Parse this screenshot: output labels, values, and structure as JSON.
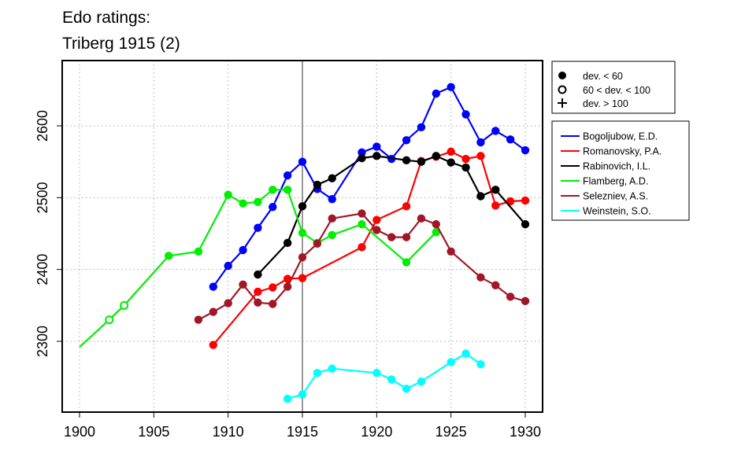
{
  "chart_data": {
    "type": "line",
    "title": "Edo ratings:",
    "subtitle": "Triberg 1915 (2)",
    "xlabel": "",
    "ylabel": "",
    "xlim": [
      1900,
      1930
    ],
    "ylim": [
      2200,
      2690
    ],
    "x_ticks": [
      "1900",
      "1905",
      "1910",
      "1915",
      "1920",
      "1925",
      "1930"
    ],
    "y_ticks": [
      "2300",
      "2400",
      "2500",
      "2600"
    ],
    "grid": true,
    "event_year": 1915,
    "marker_legend": [
      {
        "symbol": "filled-circle",
        "label": "dev. < 60"
      },
      {
        "symbol": "open-circle",
        "label": "60 < dev. < 100"
      },
      {
        "symbol": "plus",
        "label": "dev. > 100"
      }
    ],
    "series": [
      {
        "name": "Bogoljubow, E.D.",
        "color": "#0000ff",
        "points": [
          [
            1909,
            2376
          ],
          [
            1910,
            2405
          ],
          [
            1911,
            2427
          ],
          [
            1912,
            2458
          ],
          [
            1913,
            2487
          ],
          [
            1914,
            2531
          ],
          [
            1915,
            2550
          ],
          [
            1916,
            2512
          ],
          [
            1917,
            2498
          ],
          [
            1919,
            2563
          ],
          [
            1920,
            2571
          ],
          [
            1921,
            2554
          ],
          [
            1922,
            2580
          ],
          [
            1923,
            2598
          ],
          [
            1924,
            2645
          ],
          [
            1925,
            2654
          ],
          [
            1926,
            2616
          ],
          [
            1927,
            2577
          ],
          [
            1928,
            2593
          ],
          [
            1929,
            2581
          ],
          [
            1930,
            2566
          ]
        ],
        "markers": [
          "f",
          "f",
          "f",
          "f",
          "f",
          "f",
          "f",
          "f",
          "f",
          "f",
          "f",
          "f",
          "f",
          "f",
          "f",
          "f",
          "f",
          "f",
          "f",
          "f",
          "f"
        ]
      },
      {
        "name": "Romanovsky, P.A.",
        "color": "#ff0000",
        "points": [
          [
            1909,
            2295
          ],
          [
            1912,
            2369
          ],
          [
            1913,
            2375
          ],
          [
            1914,
            2387
          ],
          [
            1915,
            2388
          ],
          [
            1919,
            2431
          ],
          [
            1920,
            2469
          ],
          [
            1922,
            2488
          ],
          [
            1923,
            2551
          ],
          [
            1924,
            2557
          ],
          [
            1925,
            2564
          ],
          [
            1926,
            2554
          ],
          [
            1927,
            2558
          ],
          [
            1928,
            2489
          ],
          [
            1929,
            2495
          ],
          [
            1930,
            2496
          ]
        ],
        "markers": [
          "f",
          "f",
          "f",
          "f",
          "f",
          "f",
          "f",
          "f",
          "f",
          "f",
          "f",
          "f",
          "f",
          "f",
          "f",
          "f"
        ]
      },
      {
        "name": "Rabinovich, I.L.",
        "color": "#000000",
        "points": [
          [
            1912,
            2393
          ],
          [
            1914,
            2437
          ],
          [
            1915,
            2488
          ],
          [
            1916,
            2518
          ],
          [
            1917,
            2527
          ],
          [
            1919,
            2555
          ],
          [
            1920,
            2558
          ],
          [
            1922,
            2552
          ],
          [
            1923,
            2550
          ],
          [
            1924,
            2558
          ],
          [
            1925,
            2549
          ],
          [
            1926,
            2542
          ],
          [
            1927,
            2502
          ],
          [
            1928,
            2511
          ],
          [
            1930,
            2463
          ]
        ],
        "markers": [
          "f",
          "f",
          "f",
          "f",
          "f",
          "f",
          "f",
          "f",
          "f",
          "f",
          "f",
          "f",
          "f",
          "f",
          "f"
        ]
      },
      {
        "name": "Flamberg, A.D.",
        "color": "#00ee00",
        "points": [
          [
            1900,
            2292
          ],
          [
            1902,
            2330
          ],
          [
            1903,
            2350
          ],
          [
            1906,
            2419
          ],
          [
            1908,
            2425
          ],
          [
            1910,
            2504
          ],
          [
            1911,
            2492
          ],
          [
            1912,
            2494
          ],
          [
            1913,
            2511
          ],
          [
            1914,
            2511
          ],
          [
            1915,
            2451
          ],
          [
            1916,
            2437
          ],
          [
            1917,
            2448
          ],
          [
            1919,
            2463
          ],
          [
            1922,
            2410
          ],
          [
            1924,
            2452
          ]
        ],
        "markers": [
          "n",
          "o",
          "o",
          "f",
          "f",
          "f",
          "f",
          "f",
          "f",
          "f",
          "f",
          "f",
          "f",
          "f",
          "f",
          "f"
        ]
      },
      {
        "name": "Selezniev, A.S.",
        "color": "#a01828",
        "points": [
          [
            1908,
            2330
          ],
          [
            1909,
            2341
          ],
          [
            1910,
            2353
          ],
          [
            1911,
            2379
          ],
          [
            1912,
            2354
          ],
          [
            1913,
            2352
          ],
          [
            1914,
            2376
          ],
          [
            1915,
            2417
          ],
          [
            1916,
            2436
          ],
          [
            1917,
            2471
          ],
          [
            1919,
            2478
          ],
          [
            1920,
            2455
          ],
          [
            1921,
            2445
          ],
          [
            1922,
            2445
          ],
          [
            1923,
            2471
          ],
          [
            1924,
            2463
          ],
          [
            1925,
            2425
          ],
          [
            1927,
            2389
          ],
          [
            1928,
            2378
          ],
          [
            1929,
            2362
          ],
          [
            1930,
            2356
          ]
        ],
        "markers": [
          "f",
          "f",
          "f",
          "f",
          "f",
          "f",
          "f",
          "f",
          "f",
          "f",
          "f",
          "f",
          "f",
          "f",
          "f",
          "f",
          "f",
          "f",
          "f",
          "f",
          "f"
        ]
      },
      {
        "name": "Weinstein, S.O.",
        "color": "#00ffff",
        "points": [
          [
            1914,
            2220
          ],
          [
            1915,
            2226
          ],
          [
            1916,
            2256
          ],
          [
            1917,
            2262
          ],
          [
            1920,
            2256
          ],
          [
            1921,
            2247
          ],
          [
            1922,
            2234
          ],
          [
            1923,
            2244
          ],
          [
            1925,
            2271
          ],
          [
            1926,
            2283
          ],
          [
            1927,
            2268
          ]
        ],
        "markers": [
          "f",
          "f",
          "f",
          "f",
          "f",
          "f",
          "f",
          "f",
          "f",
          "f",
          "f"
        ]
      }
    ]
  }
}
